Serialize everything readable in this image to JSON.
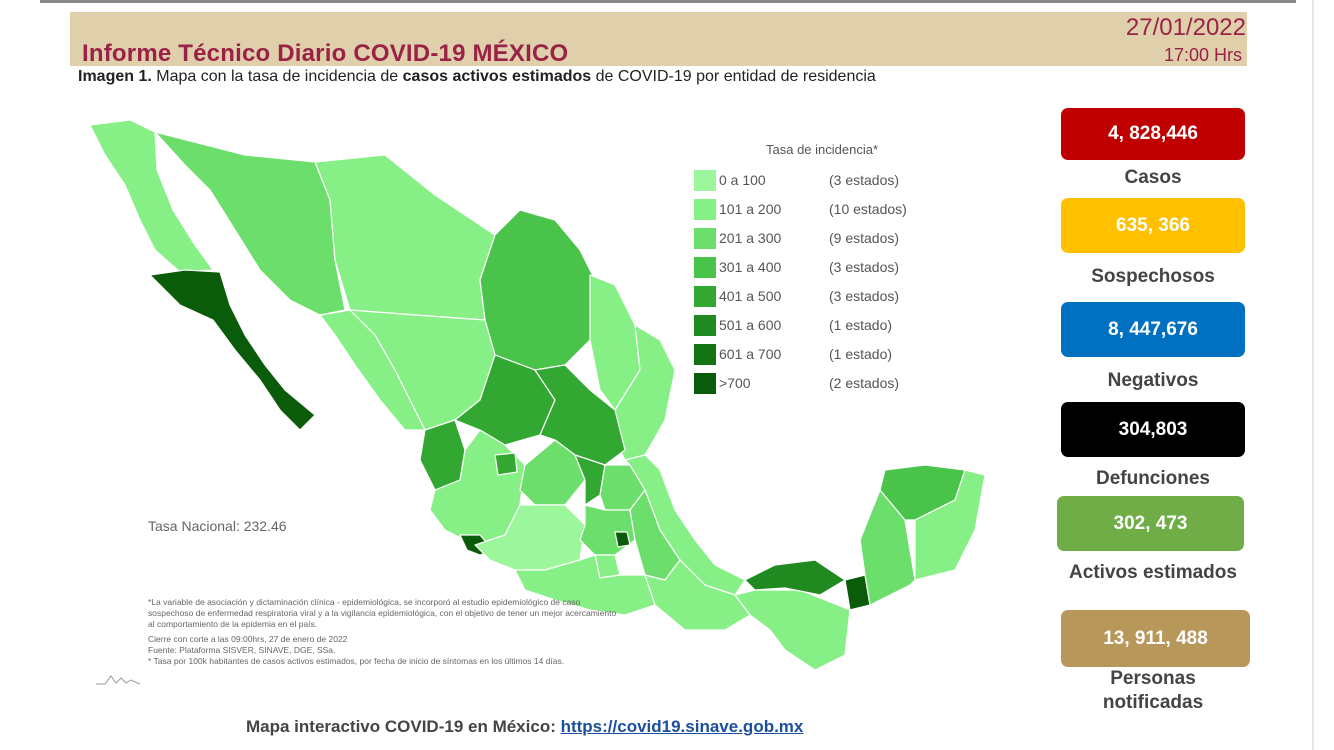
{
  "header": {
    "title": "Informe Técnico Diario COVID-19 MÉXICO",
    "date": "27/01/2022",
    "time": "17:00 Hrs"
  },
  "caption": {
    "label": "Imagen 1.",
    "part1": " Mapa con la tasa de incidencia de ",
    "bold": "casos activos estimados",
    "part2": " de COVID-19 por entidad de residencia"
  },
  "legend": {
    "title": "Tasa de incidencia*",
    "items": [
      {
        "range": "0 a   100",
        "count": "(3 estados)",
        "color": "#9cf79c"
      },
      {
        "range": "101 a   200",
        "count": "(10 estados)",
        "color": "#86ef86"
      },
      {
        "range": "201 a   300",
        "count": "(9 estados)",
        "color": "#6bde6b"
      },
      {
        "range": "301 a   400",
        "count": "(3 estados)",
        "color": "#49c349"
      },
      {
        "range": "401 a   500",
        "count": "(3 estados)",
        "color": "#32a832"
      },
      {
        "range": "501 a   600",
        "count": "(1 estado)",
        "color": "#208a20"
      },
      {
        "range": "601 a   700",
        "count": "(1 estado)",
        "color": "#137213"
      },
      {
        "range": ">700",
        "count": "(2 estados)",
        "color": "#0a5c0a"
      }
    ]
  },
  "tasa_nacional": "Tasa Nacional: 232.46",
  "notes": {
    "line1": "*La variable de asociación y dictaminación clínica - epidemiológica, se incorporó al estudio epidemiológico de caso sospechoso de enfermedad respiratoria viral y a la vigilancia epidemiológica, con el objetivo de tener un mejor acercamiento al comportamiento de la epidemia en el país.",
    "line2": "Cierre con corte a las 09:00hrs, 27 de enero de 2022",
    "line3": "Fuente: Plataforma SISVER, SINAVE, DGE, SSa.",
    "line4": "* Tasa por 100k habitantes de casos activos estimados, por fecha de inicio de síntomas en los últimos 14 días."
  },
  "footer": {
    "text": "Mapa interactivo COVID-19 en México: ",
    "link": "https://covid19.sinave.gob.mx"
  },
  "stats": [
    {
      "value": "4, 828,446",
      "label": "Casos",
      "color": "#c00000"
    },
    {
      "value": "635, 366",
      "label": "Sospechosos",
      "color": "#ffc000"
    },
    {
      "value": "8, 447,676",
      "label": "Negativos",
      "color": "#0070c0"
    },
    {
      "value": "304,803",
      "label": "Defunciones",
      "color": "#000000"
    },
    {
      "value": "302, 473",
      "label": "Activos estimados",
      "color": "#70ad47"
    },
    {
      "value": "13, 911, 488",
      "label": "Personas notificadas",
      "color": "#b8975a"
    }
  ]
}
